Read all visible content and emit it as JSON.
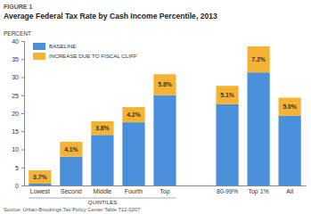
{
  "chart_data": {
    "type": "bar",
    "stacked": true,
    "title": "FIGURE 1",
    "subtitle": "Average Federal Tax Rate by Cash Income Percentile, 2013",
    "y_label": "PERCENT",
    "annotations": [
      "QUINTILES",
      "Source: Urban-Brookings Tax Policy Center Table T12-0207"
    ],
    "categories": [
      "Lowest",
      "Second",
      "Middle",
      "Fourth",
      "Top",
      null,
      "80-99%",
      "Top 1%",
      "All"
    ],
    "series": [
      {
        "name": "BASELINE",
        "color": "#4a8fd9",
        "values": [
          0.5,
          8.0,
          14.0,
          17.5,
          25.0,
          null,
          22.5,
          31.3,
          19.3
        ]
      },
      {
        "name": "INCREASE DUE TO FISCAL CLIFF",
        "color": "#f6b233",
        "values": [
          3.7,
          4.1,
          3.8,
          4.2,
          5.8,
          null,
          5.1,
          7.2,
          5.0
        ],
        "value_labels": [
          "3.7%",
          "4.1%",
          "3.8%",
          "4.2%",
          "5.8%",
          null,
          "5.1%",
          "7.2%",
          "5.0%"
        ]
      }
    ],
    "ylim": [
      0,
      40
    ],
    "yticks": [
      0,
      5,
      10,
      15,
      20,
      25,
      30,
      35,
      40
    ],
    "grid": false,
    "legend": "top-left",
    "data_labels": true
  }
}
